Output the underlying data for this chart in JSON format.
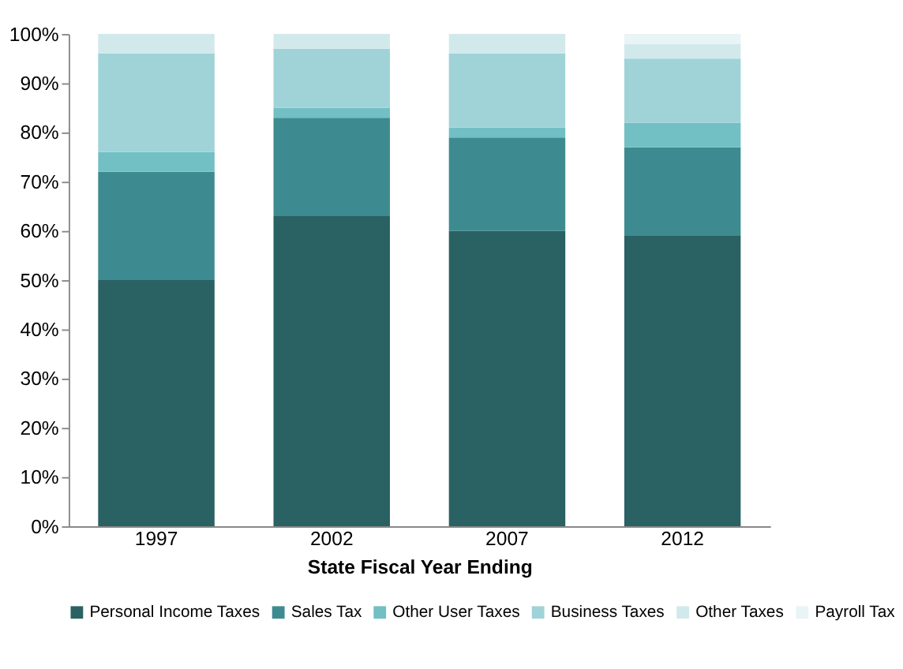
{
  "chart_data": {
    "type": "bar",
    "stacked": true,
    "xlabel": "State Fiscal Year Ending",
    "categories": [
      "1997",
      "2002",
      "2007",
      "2012"
    ],
    "series": [
      {
        "name": "Personal Income Taxes",
        "color": "#2a6163",
        "values": [
          50,
          63,
          60,
          59
        ]
      },
      {
        "name": "Sales Tax",
        "color": "#3d8b90",
        "values": [
          22,
          20,
          19,
          18
        ]
      },
      {
        "name": "Other User Taxes",
        "color": "#72bfc4",
        "values": [
          4,
          2,
          2,
          5
        ]
      },
      {
        "name": "Business Taxes",
        "color": "#9fd3d7",
        "values": [
          20,
          12,
          15,
          13
        ]
      },
      {
        "name": "Other Taxes",
        "color": "#d2e9eb",
        "values": [
          4,
          3,
          4,
          3
        ]
      },
      {
        "name": "Payroll Tax",
        "color": "#e8f4f5",
        "values": [
          null,
          null,
          null,
          2
        ]
      }
    ],
    "ylim": [
      0,
      100
    ],
    "yticks": [
      {
        "value": 0,
        "label": "0%"
      },
      {
        "value": 10,
        "label": "10%"
      },
      {
        "value": 20,
        "label": "20%"
      },
      {
        "value": 30,
        "label": "30%"
      },
      {
        "value": 40,
        "label": "40%"
      },
      {
        "value": 50,
        "label": "50%"
      },
      {
        "value": 60,
        "label": "60%"
      },
      {
        "value": 70,
        "label": "70%"
      },
      {
        "value": 80,
        "label": "80%"
      },
      {
        "value": 90,
        "label": "90%"
      },
      {
        "value": 100,
        "label": "100%"
      }
    ],
    "grid": false,
    "legend": "bottom"
  }
}
